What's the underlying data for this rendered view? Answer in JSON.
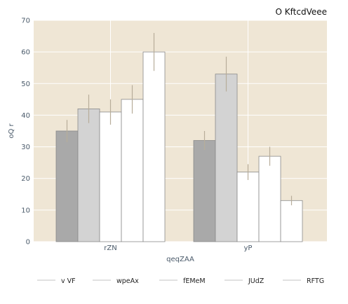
{
  "chart_data": {
    "type": "bar",
    "title": "O KftcdVeee",
    "xlabel": "qeqZAA",
    "ylabel": "oQ r",
    "ylim": [
      0,
      70
    ],
    "yticks": [
      0,
      10,
      20,
      30,
      40,
      50,
      60,
      70
    ],
    "categories": [
      "rZN",
      "yP"
    ],
    "grid": true,
    "legend": "bottom",
    "background": "#efe6d5",
    "series": [
      {
        "name": "v VF",
        "color": "#a9a9a9",
        "values": [
          35,
          32
        ],
        "errors": [
          3.5,
          3
        ]
      },
      {
        "name": "wpeAx",
        "color": "#d3d3d3",
        "values": [
          42,
          53
        ],
        "errors": [
          4.5,
          5.5
        ]
      },
      {
        "name": "fEMeM",
        "color": "#ffffff",
        "values": [
          41,
          22
        ],
        "errors": [
          4,
          2.5
        ]
      },
      {
        "name": "JUdZ",
        "color": "#ffffff",
        "values": [
          45,
          27
        ],
        "errors": [
          4.5,
          3
        ]
      },
      {
        "name": "RFTG",
        "color": "#ffffff",
        "values": [
          60,
          13
        ],
        "errors": [
          6,
          1.5
        ]
      }
    ]
  }
}
